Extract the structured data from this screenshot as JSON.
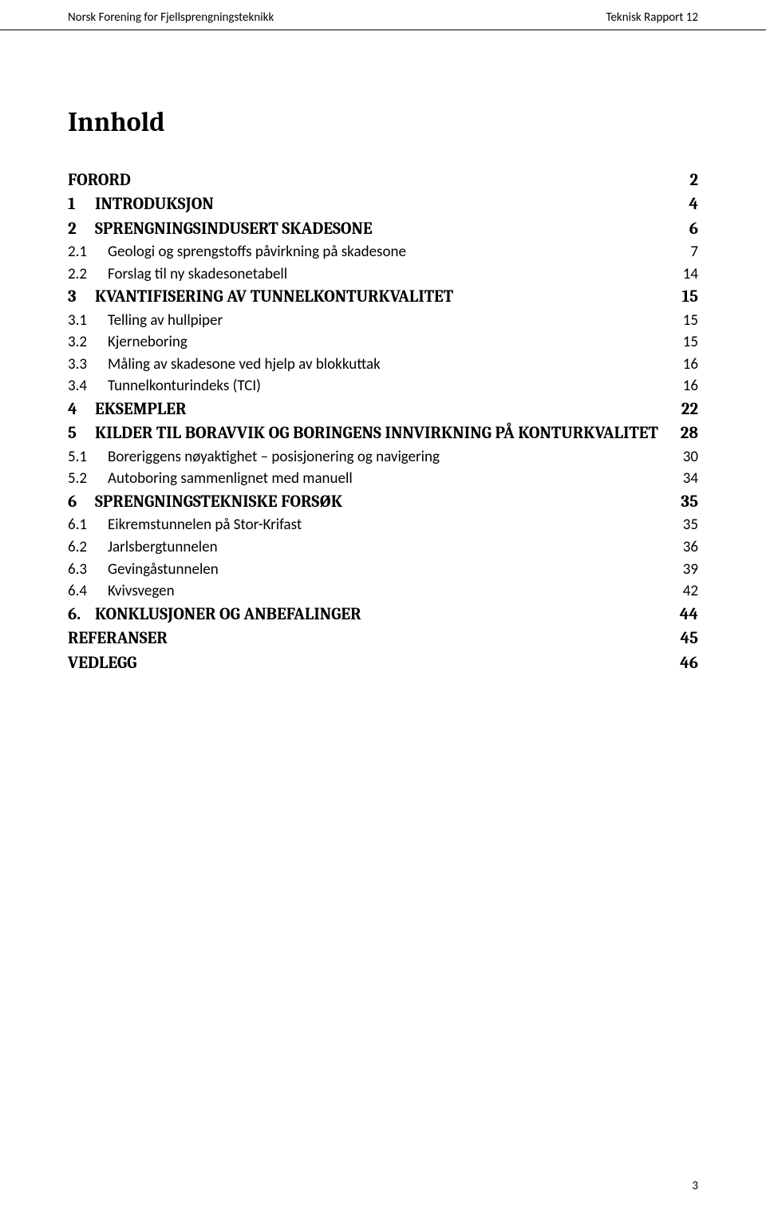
{
  "header": {
    "left": "Norsk Forening for Fjellsprengningsteknikk",
    "right": "Teknisk Rapport 12"
  },
  "title": "Innhold",
  "toc": [
    {
      "level": 1,
      "num": "",
      "text": "FORORD",
      "page": "2"
    },
    {
      "level": 1,
      "num": "1",
      "text": "INTRODUKSJON",
      "page": "4"
    },
    {
      "level": 1,
      "num": "2",
      "text": "SPRENGNINGSINDUSERT SKADESONE",
      "page": "6"
    },
    {
      "level": 2,
      "num": "2.1",
      "text": "Geologi og sprengstoffs påvirkning på skadesone",
      "page": "7"
    },
    {
      "level": 2,
      "num": "2.2",
      "text": "Forslag til ny skadesonetabell",
      "page": "14"
    },
    {
      "level": 1,
      "num": "3",
      "text": "KVANTIFISERING AV TUNNELKONTURKVALITET",
      "page": "15"
    },
    {
      "level": 2,
      "num": "3.1",
      "text": "Telling av hullpiper",
      "page": "15"
    },
    {
      "level": 2,
      "num": "3.2",
      "text": "Kjerneboring",
      "page": "15"
    },
    {
      "level": 2,
      "num": "3.3",
      "text": "Måling av skadesone ved hjelp av blokkuttak",
      "page": "16"
    },
    {
      "level": 2,
      "num": "3.4",
      "text": "Tunnelkonturindeks (TCI)",
      "page": "16"
    },
    {
      "level": 1,
      "num": "4",
      "text": "EKSEMPLER",
      "page": "22"
    },
    {
      "level": 1,
      "num": "5",
      "text": "KILDER TIL BORAVVIK OG BORINGENS INNVIRKNING PÅ KONTURKVALITET",
      "page": "28"
    },
    {
      "level": 2,
      "num": "5.1",
      "text": "Boreriggens nøyaktighet – posisjonering og navigering",
      "page": "30"
    },
    {
      "level": 2,
      "num": "5.2",
      "text": "Autoboring sammenlignet med manuell",
      "page": "34"
    },
    {
      "level": 1,
      "num": "6",
      "text": "SPRENGNINGSTEKNISKE FORSØK",
      "page": "35"
    },
    {
      "level": 2,
      "num": "6.1",
      "text": "Eikremstunnelen på Stor-Krifast",
      "page": "35"
    },
    {
      "level": 2,
      "num": "6.2",
      "text": "Jarlsbergtunnelen",
      "page": "36"
    },
    {
      "level": 2,
      "num": "6.3",
      "text": "Gevingåstunnelen",
      "page": "39"
    },
    {
      "level": 2,
      "num": "6.4",
      "text": "Kvivsvegen",
      "page": "42"
    },
    {
      "level": 1,
      "num": "6.",
      "text": "KONKLUSJONER OG ANBEFALINGER",
      "page": "44"
    },
    {
      "level": 1,
      "num": "",
      "text": "REFERANSER",
      "page": "45"
    },
    {
      "level": 1,
      "num": "",
      "text": "VEDLEGG",
      "page": "46"
    }
  ],
  "page_number": "3"
}
